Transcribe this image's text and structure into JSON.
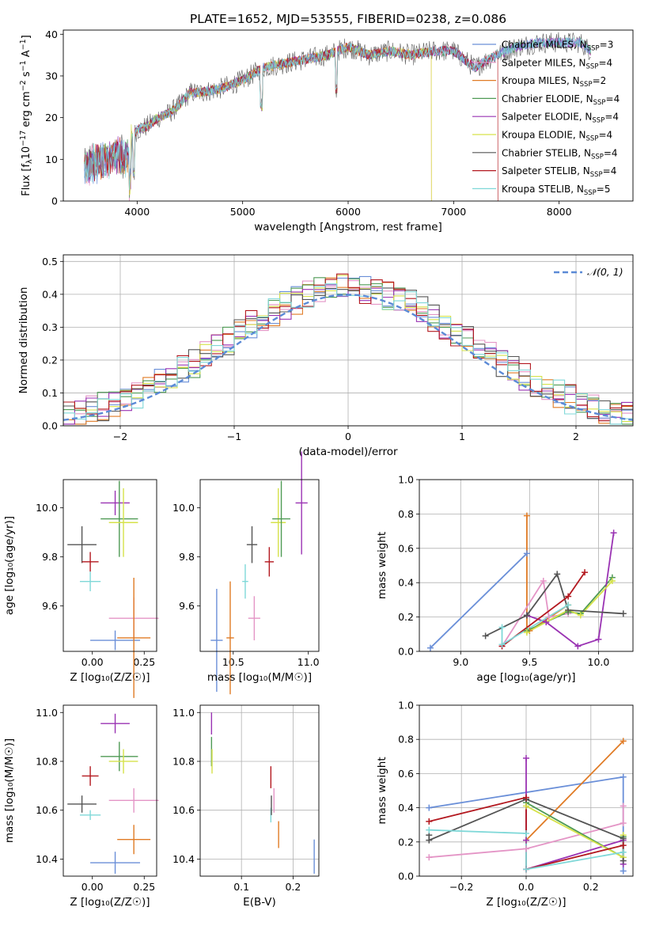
{
  "figure_title": "PLATE=1652, MJD=53555, FIBERID=0238, z=0.086",
  "colors": {
    "chabrier_miles": "#6a8fd8",
    "salpeter_miles": "#e495c6",
    "kroupa_miles": "#e07b25",
    "chabrier_elodie": "#4f9a55",
    "salpeter_elodie": "#9a33b3",
    "kroupa_elodie": "#d6e24a",
    "chabrier_stelib": "#545454",
    "salpeter_stelib": "#b3181f",
    "kroupa_stelib": "#7fd8d8",
    "normal_curve": "#5b8ad6",
    "grid": "#b0b0b0"
  },
  "chart_data": [
    {
      "id": "spectrum",
      "type": "line",
      "title": "PLATE=1652, MJD=53555, FIBERID=0238, z=0.086",
      "xlabel": "wavelength [Angstrom, rest frame]",
      "ylabel_prefix": "Flux [f",
      "ylabel_sub": "λ",
      "ylabel_mid": "10",
      "ylabel_sup1": "−17",
      "ylabel_tail": " erg cm",
      "ylabel_sup2": "−2",
      "ylabel_tail2": " s",
      "ylabel_sup3": "−1",
      "ylabel_tail3": " A",
      "ylabel_sup4": "−1",
      "ylabel_end": "]",
      "xlim": [
        3300,
        8700
      ],
      "ylim": [
        0,
        41
      ],
      "xticks": [
        4000,
        5000,
        6000,
        7000,
        8000
      ],
      "yticks": [
        0,
        10,
        20,
        30,
        40
      ],
      "spectrum_envelope": {
        "x": [
          3500,
          3600,
          3700,
          3800,
          3900,
          3950,
          4000,
          4100,
          4200,
          4300,
          4400,
          4500,
          4600,
          4800,
          5000,
          5200,
          5400,
          5600,
          5800,
          6000,
          6200,
          6400,
          6600,
          6800,
          7000,
          7200,
          7400,
          7600,
          7800,
          8000,
          8200,
          8300
        ],
        "y": [
          8,
          9,
          10,
          11,
          10,
          15,
          17,
          18,
          20,
          21,
          23,
          26,
          26,
          27,
          29,
          32,
          33,
          34,
          35,
          37,
          35,
          36,
          35,
          36,
          36,
          32,
          35,
          37,
          38,
          38,
          38,
          36
        ]
      },
      "legend_position": "upper right",
      "legend": [
        {
          "key": "chabrier_miles",
          "label": "Chabrier MILES, N",
          "sub": "SSP",
          "tail": "=3"
        },
        {
          "key": "salpeter_miles",
          "label": "Salpeter MILES, N",
          "sub": "SSP",
          "tail": "=4"
        },
        {
          "key": "kroupa_miles",
          "label": "Kroupa MILES, N",
          "sub": "SSP",
          "tail": "=2"
        },
        {
          "key": "chabrier_elodie",
          "label": "Chabrier ELODIE, N",
          "sub": "SSP",
          "tail": "=4"
        },
        {
          "key": "salpeter_elodie",
          "label": "Salpeter ELODIE, N",
          "sub": "SSP",
          "tail": "=4"
        },
        {
          "key": "kroupa_elodie",
          "label": "Kroupa ELODIE, N",
          "sub": "SSP",
          "tail": "=4"
        },
        {
          "key": "chabrier_stelib",
          "label": "Chabrier STELIB, N",
          "sub": "SSP",
          "tail": "=4"
        },
        {
          "key": "salpeter_stelib",
          "label": "Salpeter STELIB, N",
          "sub": "SSP",
          "tail": "=4"
        },
        {
          "key": "kroupa_stelib",
          "label": "Kroupa STELIB, N",
          "sub": "SSP",
          "tail": "=5"
        }
      ]
    },
    {
      "id": "residuals",
      "type": "histogram",
      "xlabel": "(data-model)/error",
      "ylabel": "Normed distribution",
      "xlim": [
        -2.5,
        2.5
      ],
      "ylim": [
        0,
        0.52
      ],
      "xticks": [
        -2,
        -1,
        0,
        1,
        2
      ],
      "xticklabels": [
        "−2",
        "−1",
        "0",
        "1",
        "2"
      ],
      "yticks": [
        0.0,
        0.1,
        0.2,
        0.3,
        0.4,
        0.5
      ],
      "yticklabels": [
        "0.0",
        "0.1",
        "0.2",
        "0.3",
        "0.4",
        "0.5"
      ],
      "bin_width": 0.1,
      "normal_label": "𝒩(0, 1)",
      "legend_position": "upper right",
      "grid": true
    },
    {
      "id": "age_vs_Z",
      "type": "scatter",
      "xlabel": "Z [log₁₀(Z/Z☉)]",
      "ylabel": "age  [log₁₀(age/yr)]",
      "xlim": [
        -0.14,
        0.31
      ],
      "ylim": [
        9.415,
        10.115
      ],
      "xticks": [
        0.0,
        0.25
      ],
      "xticklabels": [
        "0.00",
        "0.25"
      ],
      "yticks": [
        9.6,
        9.8,
        10.0
      ],
      "yticklabels": [
        "9.6",
        "9.8",
        "10.0"
      ],
      "points": [
        {
          "key": "chabrier_stelib",
          "x": -0.05,
          "y": 9.85,
          "xerr": 0.07,
          "yerr": 0.075
        },
        {
          "key": "salpeter_stelib",
          "x": -0.01,
          "y": 9.78,
          "xerr": 0.04,
          "yerr": 0.04
        },
        {
          "key": "kroupa_stelib",
          "x": -0.01,
          "y": 9.7,
          "xerr": 0.05,
          "yerr": 0.04
        },
        {
          "key": "salpeter_elodie",
          "x": 0.11,
          "y": 10.02,
          "xerr": 0.07,
          "yerr": 0.05
        },
        {
          "key": "chabrier_elodie",
          "x": 0.13,
          "y": 9.955,
          "xerr": 0.09,
          "yerr": 0.155
        },
        {
          "key": "kroupa_elodie",
          "x": 0.15,
          "y": 9.94,
          "xerr": 0.07,
          "yerr": 0.14
        },
        {
          "key": "chabrier_miles",
          "x": 0.11,
          "y": 9.46,
          "xerr": 0.12,
          "yerr": 0.04
        },
        {
          "key": "salpeter_miles",
          "x": 0.2,
          "y": 9.55,
          "xerr": 0.12,
          "yerr": 0.085
        },
        {
          "key": "kroupa_miles",
          "x": 0.2,
          "y": 9.47,
          "xerr": 0.08,
          "yerr": 0.245
        }
      ]
    },
    {
      "id": "age_vs_mass",
      "type": "scatter",
      "xlabel": "mass [log₁₀(M/M☉)]",
      "xlim": [
        10.28,
        11.07
      ],
      "ylim": [
        9.415,
        10.115
      ],
      "xticks": [
        10.5,
        11.0
      ],
      "xticklabels": [
        "10.5",
        "11.0"
      ],
      "yticks": [
        9.6,
        9.8,
        10.0
      ],
      "yticklabels": [
        "9.6",
        "9.8",
        "10.0"
      ],
      "points": [
        {
          "key": "chabrier_miles",
          "x": 10.39,
          "y": 9.46,
          "yerr": 0.21,
          "xerr": 0.04
        },
        {
          "key": "kroupa_miles",
          "x": 10.48,
          "y": 9.47,
          "yerr": 0.23,
          "xerr": 0.025
        },
        {
          "key": "kroupa_stelib",
          "x": 10.58,
          "y": 9.7,
          "yerr": 0.07,
          "xerr": 0.02
        },
        {
          "key": "salpeter_miles",
          "x": 10.64,
          "y": 9.55,
          "yerr": 0.09,
          "xerr": 0.04
        },
        {
          "key": "chabrier_stelib",
          "x": 10.625,
          "y": 9.85,
          "yerr": 0.075,
          "xerr": 0.035
        },
        {
          "key": "salpeter_stelib",
          "x": 10.74,
          "y": 9.78,
          "yerr": 0.06,
          "xerr": 0.03
        },
        {
          "key": "kroupa_elodie",
          "x": 10.8,
          "y": 9.94,
          "yerr": 0.14,
          "xerr": 0.05
        },
        {
          "key": "chabrier_elodie",
          "x": 10.82,
          "y": 9.955,
          "yerr": 0.155,
          "xerr": 0.06
        },
        {
          "key": "salpeter_elodie",
          "x": 10.955,
          "y": 10.02,
          "yerr": 0.21,
          "xerr": 0.04
        }
      ]
    },
    {
      "id": "mass_weight_vs_age",
      "type": "line",
      "xlabel": "age  [log₁₀(age/yr)]",
      "ylabel": "mass weight",
      "xlim": [
        8.7,
        10.25
      ],
      "ylim": [
        0,
        1
      ],
      "xticks": [
        9.0,
        9.5,
        10.0
      ],
      "xticklabels": [
        "9.0",
        "9.5",
        "10.0"
      ],
      "yticks": [
        0,
        0.2,
        0.4,
        0.6,
        0.8,
        1.0
      ],
      "yticklabels": [
        "0.0",
        "0.2",
        "0.4",
        "0.6",
        "0.8",
        "1.0"
      ],
      "grid": true,
      "series": [
        {
          "key": "chabrier_miles",
          "x": [
            8.78,
            9.48
          ],
          "y": [
            0.02,
            0.57
          ]
        },
        {
          "key": "kroupa_miles",
          "x": [
            9.48,
            9.48,
            9.5,
            9.78
          ],
          "y": [
            0.79,
            0.12,
            0.12,
            0.27
          ]
        },
        {
          "key": "salpeter_miles",
          "x": [
            9.3,
            9.6,
            9.64,
            9.78
          ],
          "y": [
            0.03,
            0.41,
            0.2,
            0.22
          ]
        },
        {
          "key": "chabrier_elodie",
          "x": [
            9.48,
            9.78,
            9.87,
            10.1
          ],
          "y": [
            0.12,
            0.23,
            0.22,
            0.43
          ]
        },
        {
          "key": "salpeter_elodie",
          "x": [
            9.48,
            9.62,
            9.85,
            10.0,
            10.11
          ],
          "y": [
            0.21,
            0.17,
            0.03,
            0.07,
            0.69
          ]
        },
        {
          "key": "kroupa_elodie",
          "x": [
            9.48,
            9.78,
            9.87,
            10.1
          ],
          "y": [
            0.11,
            0.24,
            0.21,
            0.41
          ]
        },
        {
          "key": "chabrier_stelib",
          "x": [
            9.18,
            9.48,
            9.7,
            9.78,
            10.18
          ],
          "y": [
            0.09,
            0.21,
            0.45,
            0.24,
            0.22
          ]
        },
        {
          "key": "salpeter_stelib",
          "x": [
            9.3,
            9.78,
            9.9
          ],
          "y": [
            0.03,
            0.32,
            0.46
          ]
        },
        {
          "key": "kroupa_stelib",
          "x": [
            9.3,
            9.3,
            9.78
          ],
          "y": [
            0.14,
            0.04,
            0.27
          ]
        }
      ]
    },
    {
      "id": "mass_vs_Z",
      "type": "scatter",
      "xlabel": "Z [log₁₀(Z/Z☉)]",
      "ylabel": "mass [log₁₀(M/M☉)]",
      "xlim": [
        -0.14,
        0.31
      ],
      "ylim": [
        10.33,
        11.03
      ],
      "xticks": [
        0.0,
        0.25
      ],
      "xticklabels": [
        "0.00",
        "0.25"
      ],
      "yticks": [
        10.4,
        10.6,
        10.8,
        11.0
      ],
      "yticklabels": [
        "10.4",
        "10.6",
        "10.8",
        "11.0"
      ],
      "points": [
        {
          "key": "chabrier_stelib",
          "x": -0.05,
          "y": 10.625,
          "xerr": 0.07,
          "yerr": 0.035
        },
        {
          "key": "salpeter_stelib",
          "x": -0.01,
          "y": 10.74,
          "xerr": 0.04,
          "yerr": 0.04
        },
        {
          "key": "kroupa_stelib",
          "x": -0.01,
          "y": 10.58,
          "xerr": 0.05,
          "yerr": 0.02
        },
        {
          "key": "salpeter_elodie",
          "x": 0.11,
          "y": 10.955,
          "xerr": 0.07,
          "yerr": 0.04
        },
        {
          "key": "chabrier_elodie",
          "x": 0.13,
          "y": 10.82,
          "xerr": 0.09,
          "yerr": 0.06
        },
        {
          "key": "kroupa_elodie",
          "x": 0.15,
          "y": 10.8,
          "xerr": 0.07,
          "yerr": 0.05
        },
        {
          "key": "salpeter_miles",
          "x": 0.2,
          "y": 10.64,
          "xerr": 0.12,
          "yerr": 0.05
        },
        {
          "key": "kroupa_miles",
          "x": 0.2,
          "y": 10.48,
          "xerr": 0.08,
          "yerr": 0.06
        },
        {
          "key": "chabrier_miles",
          "x": 0.11,
          "y": 10.385,
          "xerr": 0.12,
          "yerr": 0.045
        }
      ]
    },
    {
      "id": "mass_vs_ebv",
      "type": "scatter",
      "xlabel": "E(B-V)",
      "xlim": [
        0.02,
        0.25
      ],
      "ylim": [
        10.33,
        11.03
      ],
      "xticks": [
        0.1,
        0.2
      ],
      "xticklabels": [
        "0.1",
        "0.2"
      ],
      "yticks": [
        10.4,
        10.6,
        10.8,
        11.0
      ],
      "yticklabels": [
        "10.4",
        "10.6",
        "10.8",
        "11.0"
      ],
      "grid": true,
      "points": [
        {
          "key": "salpeter_elodie",
          "x": 0.042,
          "y": 10.955,
          "yerr": 0.045
        },
        {
          "key": "chabrier_elodie",
          "x": 0.042,
          "y": 10.84,
          "yerr": 0.06
        },
        {
          "key": "kroupa_elodie",
          "x": 0.043,
          "y": 10.8,
          "yerr": 0.05
        },
        {
          "key": "salpeter_stelib",
          "x": 0.157,
          "y": 10.735,
          "yerr": 0.045
        },
        {
          "key": "kroupa_stelib",
          "x": 0.157,
          "y": 10.58,
          "yerr": 0.03
        },
        {
          "key": "chabrier_stelib",
          "x": 0.158,
          "y": 10.62,
          "yerr": 0.04
        },
        {
          "key": "salpeter_miles",
          "x": 0.163,
          "y": 10.64,
          "yerr": 0.05
        },
        {
          "key": "kroupa_miles",
          "x": 0.172,
          "y": 10.5,
          "yerr": 0.055
        },
        {
          "key": "chabrier_miles",
          "x": 0.241,
          "y": 10.41,
          "yerr": 0.07
        }
      ]
    },
    {
      "id": "mass_weight_vs_Z",
      "type": "line",
      "xlabel": "Z [log₁₀(Z/Z☉)]",
      "ylabel": "mass weight",
      "xlim": [
        -0.33,
        0.33
      ],
      "ylim": [
        0,
        1
      ],
      "xticks": [
        -0.2,
        0.0,
        0.2
      ],
      "xticklabels": [
        "−0.2",
        "0.0",
        "0.2"
      ],
      "yticks": [
        0,
        0.2,
        0.4,
        0.6,
        0.8,
        1.0
      ],
      "yticklabels": [
        "0.0",
        "0.2",
        "0.4",
        "0.6",
        "0.8",
        "1.0"
      ],
      "grid": true,
      "series": [
        {
          "key": "chabrier_miles",
          "x": [
            -0.3,
            0.3,
            0.3
          ],
          "y": [
            0.4,
            0.58,
            0.03
          ]
        },
        {
          "key": "kroupa_miles",
          "x": [
            0.0,
            0.3
          ],
          "y": [
            0.21,
            0.79
          ]
        },
        {
          "key": "salpeter_miles",
          "x": [
            -0.3,
            0.0,
            0.3,
            0.3
          ],
          "y": [
            0.11,
            0.16,
            0.31,
            0.41
          ]
        },
        {
          "key": "chabrier_elodie",
          "x": [
            0.0,
            0.3,
            0.3
          ],
          "y": [
            0.43,
            0.11,
            0.23
          ]
        },
        {
          "key": "salpeter_elodie",
          "x": [
            0.0,
            0.0,
            0.0,
            0.3,
            0.3
          ],
          "y": [
            0.69,
            0.21,
            0.04,
            0.21,
            0.07
          ]
        },
        {
          "key": "kroupa_elodie",
          "x": [
            0.0,
            0.3,
            0.3
          ],
          "y": [
            0.41,
            0.11,
            0.24
          ]
        },
        {
          "key": "chabrier_stelib",
          "x": [
            -0.3,
            -0.3,
            0.0,
            0.3,
            0.3
          ],
          "y": [
            0.24,
            0.21,
            0.45,
            0.22,
            0.09
          ]
        },
        {
          "key": "salpeter_stelib",
          "x": [
            -0.3,
            0.0,
            0.0,
            0.3
          ],
          "y": [
            0.32,
            0.46,
            0.04,
            0.18
          ]
        },
        {
          "key": "kroupa_stelib",
          "x": [
            -0.3,
            0.0,
            0.0,
            0.3
          ],
          "y": [
            0.27,
            0.25,
            0.04,
            0.14
          ]
        }
      ]
    }
  ]
}
